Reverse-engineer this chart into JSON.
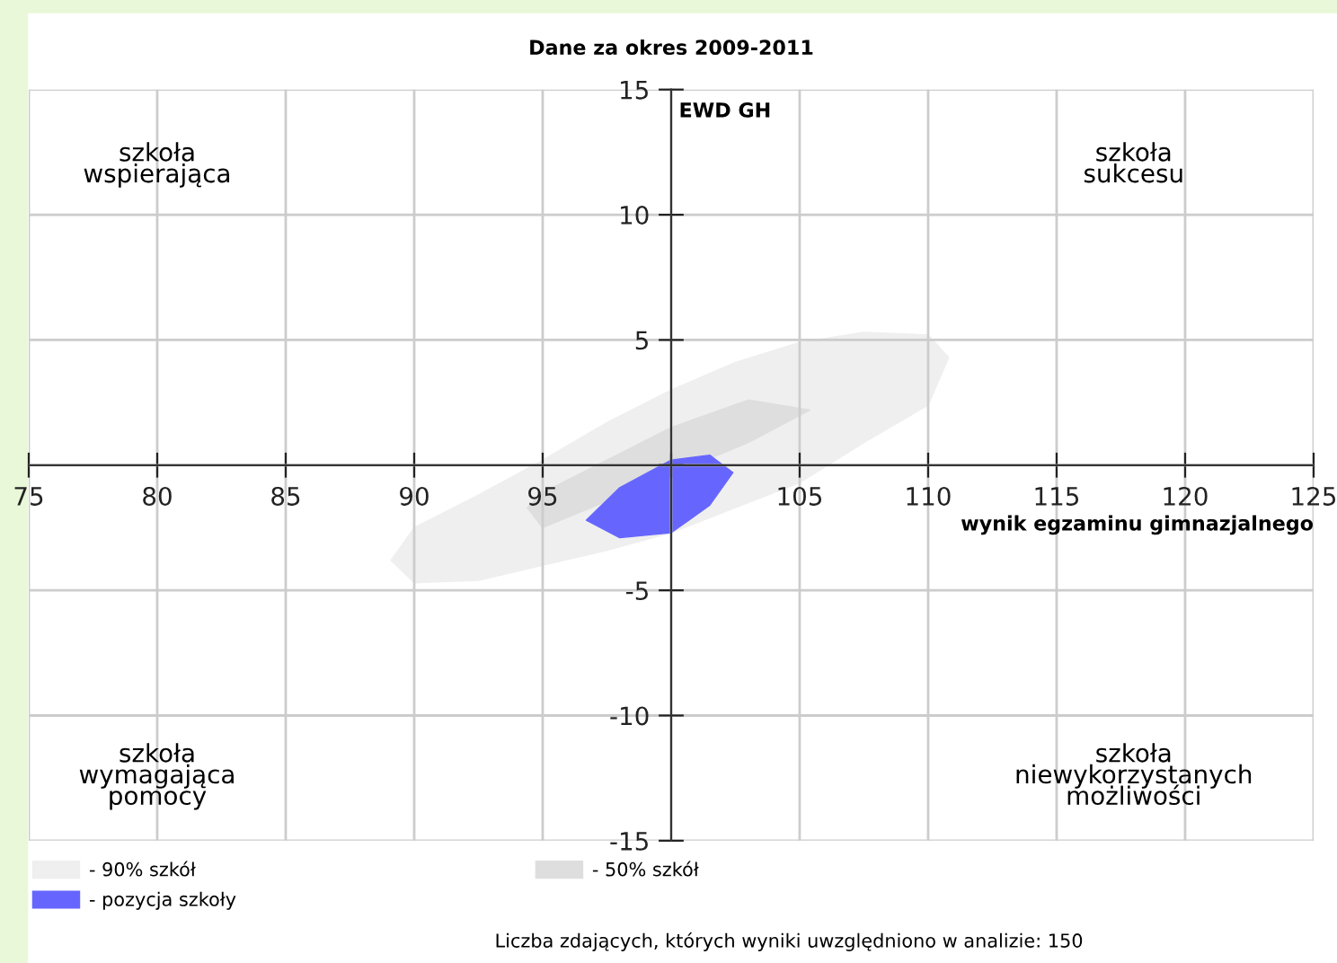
{
  "chart_data": {
    "type": "area",
    "title": "Dane za okres 2009-2011",
    "xlabel": "wynik egzaminu gimnazjalnego",
    "ylabel": "EWD GH",
    "xlim": [
      75,
      125
    ],
    "ylim": [
      -15,
      15
    ],
    "xticks": [
      75,
      80,
      85,
      90,
      95,
      {
        "value": 100,
        "label": null
      },
      105,
      110,
      115,
      120,
      125
    ],
    "yticks": [
      -15,
      -10,
      -5,
      {
        "value": 0,
        "label": null
      },
      5,
      10,
      15
    ],
    "grid": true,
    "legend": "bottom",
    "series": [
      {
        "name": "- 90% szkół",
        "color": "#efefef",
        "x": [
          89.1,
          90,
          92.5,
          95,
          97.5,
          100,
          102.5,
          105,
          107.5,
          110,
          110.8,
          110,
          107.5,
          105,
          102.5,
          100,
          97.5,
          95,
          92.5,
          90
        ],
        "values": [
          -3.8,
          -2.5,
          -1.2,
          0.2,
          1.7,
          3.0,
          4.1,
          4.9,
          5.3,
          5.2,
          4.3,
          2.4,
          0.9,
          -0.7,
          -1.7,
          -2.7,
          -3.4,
          -4.0,
          -4.6,
          -4.7
        ]
      },
      {
        "name": "- 50% szkół",
        "color": "#dedede",
        "x": [
          94.4,
          95,
          97.5,
          100,
          103,
          105.4,
          103,
          100,
          97.5,
          95
        ],
        "values": [
          -1.7,
          -1.1,
          0.2,
          1.5,
          2.6,
          2.2,
          0.9,
          null,
          null,
          -2.5
        ]
      },
      {
        "name": "- pozycja szkoły",
        "color": "#6666ff",
        "x": [
          96.7,
          98,
          100,
          101.5,
          102.4,
          101.5,
          100,
          98
        ],
        "values": [
          -2.2,
          -0.9,
          0.2,
          0.4,
          -0.3,
          -1.6,
          -2.7,
          -2.9
        ]
      }
    ],
    "annotations": [
      "szkoła\nwspierająca",
      "szkoła\nsukcesu",
      "szkoła\nwymagająca\npomocy",
      "szkoła\nniewykorzystanych\nmożliwości",
      "Liczba zdających, których wyniki uwzględniono w analizie: 150"
    ]
  }
}
